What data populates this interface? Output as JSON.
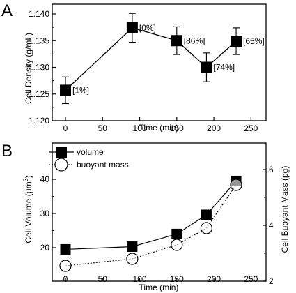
{
  "chart_data": [
    {
      "panel": "A",
      "type": "line",
      "xlabel": "Time (min)",
      "ylabel": "Cell Density (g/mL)",
      "xlim": [
        0,
        260
      ],
      "ylim": [
        1.12,
        1.14
      ],
      "xticks": [
        "0",
        "50",
        "100",
        "150",
        "200",
        "250"
      ],
      "yticks": [
        "1.120",
        "1.125",
        "1.130",
        "1.135",
        "1.140"
      ],
      "series": [
        {
          "marker": "square",
          "x": [
            0,
            90,
            150,
            190,
            230
          ],
          "y": [
            1.1257,
            1.1374,
            1.135,
            1.13,
            1.1349
          ],
          "err": [
            0.0025,
            0.0027,
            0.0026,
            0.0027,
            0.0025
          ],
          "labels": [
            "[1%]",
            "[0%]",
            "[86%]",
            "[74%]",
            "[65%]"
          ]
        }
      ]
    },
    {
      "panel": "B",
      "type": "line",
      "xlabel": "Time (min)",
      "ylabel_prefix": "Cell Volume (",
      "ylabel_unit": "μm",
      "ylabel_exp": "3",
      "ylabel_suffix": ")",
      "y2label": "Cell Buoyant Mass (pg)",
      "xlim": [
        0,
        260
      ],
      "ylim": [
        15,
        45
      ],
      "y2lim": [
        2,
        7
      ],
      "xticks": [
        "0",
        "50",
        "100",
        "150",
        "200",
        "250"
      ],
      "yticks": [
        "20",
        "30",
        "40"
      ],
      "y2ticks": [
        "2",
        "4",
        "6"
      ],
      "legend": "top-left",
      "series": [
        {
          "name": "volume",
          "marker": "square",
          "line": "solid",
          "axis": "left",
          "x": [
            0,
            90,
            150,
            190,
            230
          ],
          "y": [
            19.5,
            20.3,
            24.0,
            29.6,
            39.5
          ]
        },
        {
          "name": "buoyant mass",
          "marker": "circle",
          "line": "dotted",
          "axis": "right",
          "x": [
            0,
            90,
            150,
            190,
            230
          ],
          "y": [
            2.55,
            2.8,
            3.3,
            3.9,
            5.45
          ]
        }
      ]
    }
  ]
}
